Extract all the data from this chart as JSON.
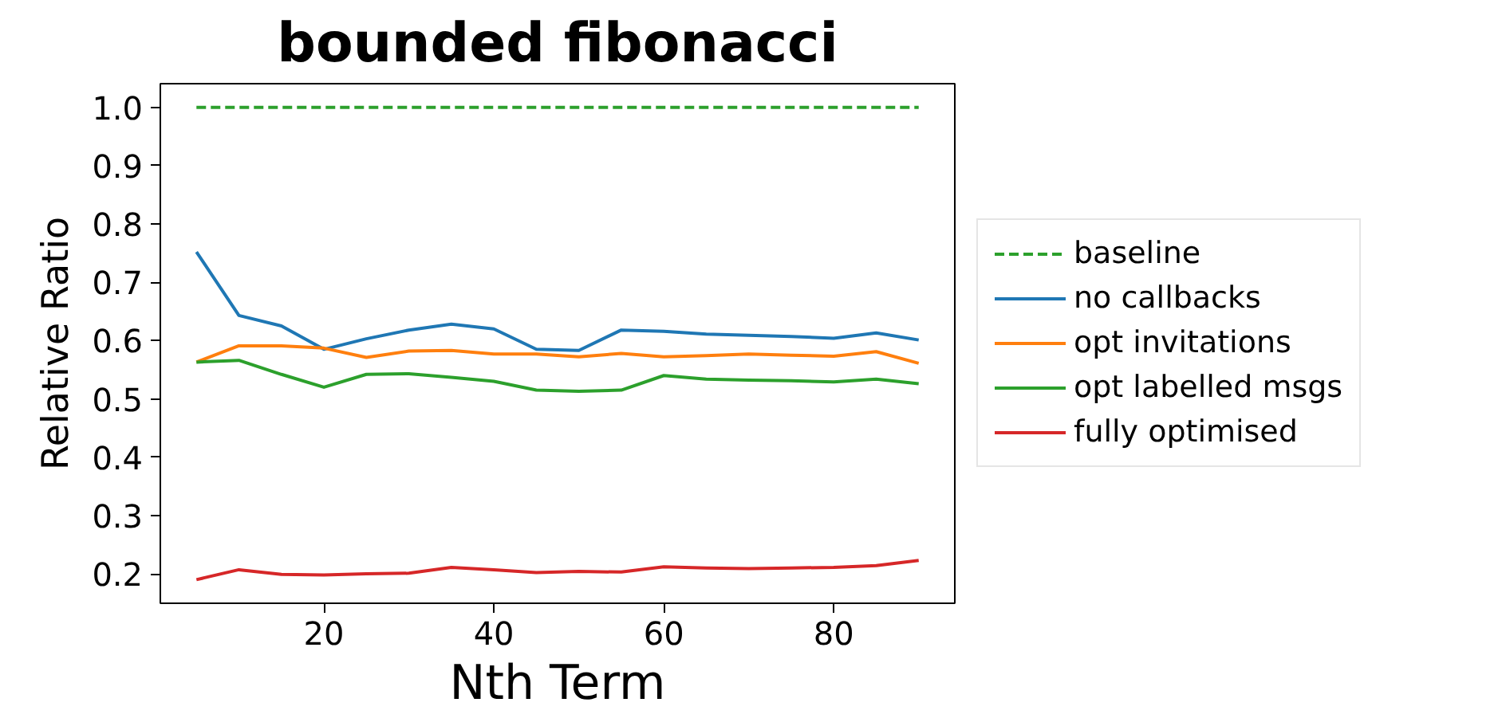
{
  "chart_data": {
    "type": "line",
    "title": "bounded fibonacci",
    "xlabel": "Nth Term",
    "ylabel": "Relative Ratio",
    "x": [
      5,
      10,
      15,
      20,
      25,
      30,
      35,
      40,
      45,
      50,
      55,
      60,
      65,
      70,
      75,
      80,
      85,
      90
    ],
    "series": [
      {
        "name": "baseline",
        "color": "#2ca02c",
        "line_style": "dashed",
        "values": [
          1.0,
          1.0,
          1.0,
          1.0,
          1.0,
          1.0,
          1.0,
          1.0,
          1.0,
          1.0,
          1.0,
          1.0,
          1.0,
          1.0,
          1.0,
          1.0,
          1.0,
          1.0
        ]
      },
      {
        "name": "no callbacks",
        "color": "#1f77b4",
        "values": [
          0.752,
          0.643,
          0.625,
          0.585,
          0.603,
          0.618,
          0.628,
          0.62,
          0.585,
          0.583,
          0.618,
          0.616,
          0.611,
          0.609,
          0.607,
          0.604,
          0.613,
          0.601
        ]
      },
      {
        "name": "opt invitations",
        "color": "#ff7f0e",
        "values": [
          0.563,
          0.591,
          0.591,
          0.587,
          0.571,
          0.582,
          0.583,
          0.577,
          0.577,
          0.572,
          0.578,
          0.572,
          0.574,
          0.577,
          0.575,
          0.573,
          0.581,
          0.561
        ]
      },
      {
        "name": "opt labelled msgs",
        "color": "#2ca02c",
        "values": [
          0.563,
          0.566,
          0.542,
          0.52,
          0.542,
          0.543,
          0.537,
          0.53,
          0.515,
          0.513,
          0.515,
          0.54,
          0.534,
          0.532,
          0.531,
          0.529,
          0.534,
          0.526
        ]
      },
      {
        "name": "fully optimised",
        "color": "#d62728",
        "values": [
          0.19,
          0.207,
          0.199,
          0.198,
          0.2,
          0.201,
          0.211,
          0.207,
          0.202,
          0.204,
          0.203,
          0.212,
          0.21,
          0.209,
          0.21,
          0.211,
          0.214,
          0.223
        ]
      }
    ],
    "xlim": [
      0.75,
      94.25
    ],
    "ylim": [
      0.1495,
      1.0405
    ],
    "xticks": [
      20,
      40,
      60,
      80
    ],
    "yticks": [
      {
        "value": 0.2,
        "label": "0.2"
      },
      {
        "value": 0.3,
        "label": "0.3"
      },
      {
        "value": 0.4,
        "label": "0.4"
      },
      {
        "value": 0.5,
        "label": "0.5"
      },
      {
        "value": 0.6,
        "label": "0.6"
      },
      {
        "value": 0.7,
        "label": "0.7"
      },
      {
        "value": 0.8,
        "label": "0.8"
      },
      {
        "value": 0.9,
        "label": "0.9"
      },
      {
        "value": 1.0,
        "label": "1.0"
      }
    ],
    "grid": false,
    "legend": "right",
    "marker": "none"
  }
}
